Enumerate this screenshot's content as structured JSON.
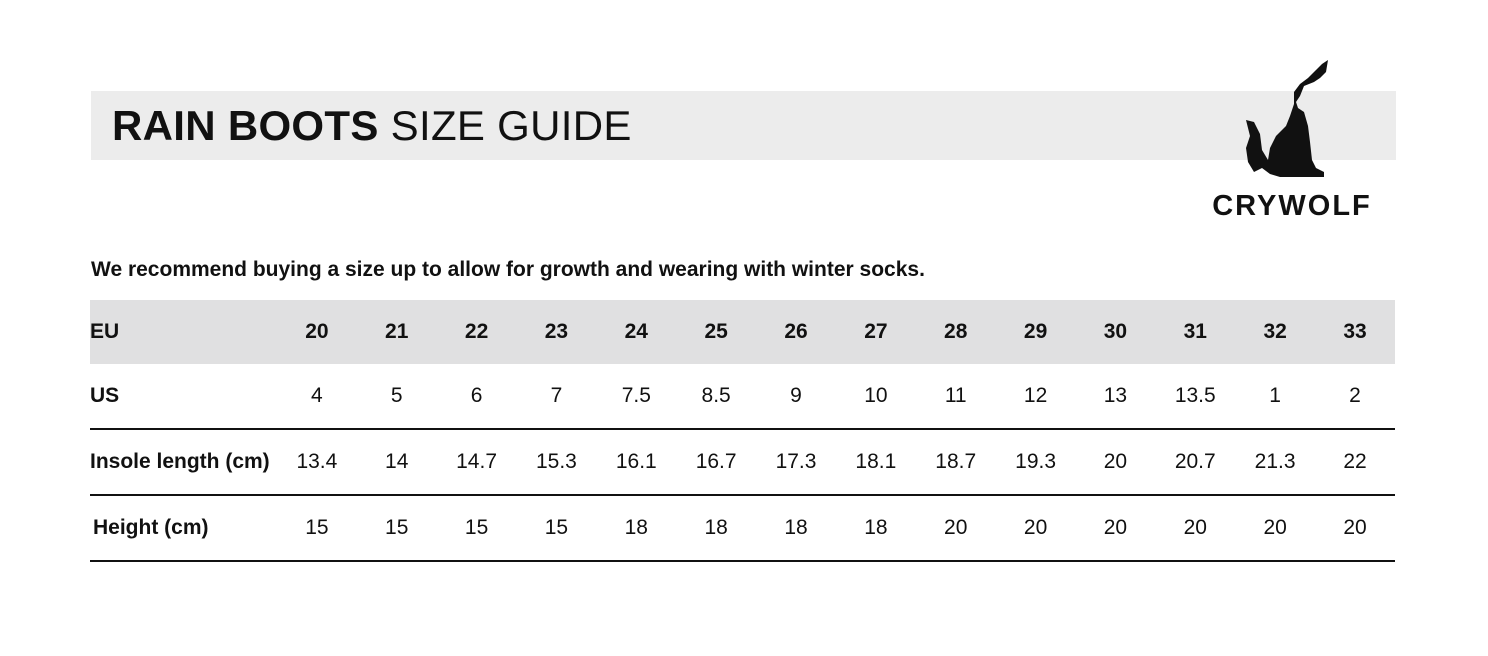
{
  "header": {
    "title_bold": "RAIN BOOTS",
    "title_light": "SIZE GUIDE"
  },
  "logo": {
    "brand": "CRYWOLF",
    "icon": "howling-wolf-icon"
  },
  "note": "We recommend buying a size up to allow for growth and wearing with winter socks.",
  "table": {
    "rows": [
      {
        "label": "EU",
        "values": [
          "20",
          "21",
          "22",
          "23",
          "24",
          "25",
          "26",
          "27",
          "28",
          "29",
          "30",
          "31",
          "32",
          "33"
        ]
      },
      {
        "label": "US",
        "values": [
          "4",
          "5",
          "6",
          "7",
          "7.5",
          "8.5",
          "9",
          "10",
          "11",
          "12",
          "13",
          "13.5",
          "1",
          "2"
        ]
      },
      {
        "label": "Insole length (cm)",
        "values": [
          "13.4",
          "14",
          "14.7",
          "15.3",
          "16.1",
          "16.7",
          "17.3",
          "18.1",
          "18.7",
          "19.3",
          "20",
          "20.7",
          "21.3",
          "22"
        ]
      },
      {
        "label": "Height (cm)",
        "values": [
          "15",
          "15",
          "15",
          "15",
          "18",
          "18",
          "18",
          "18",
          "20",
          "20",
          "20",
          "20",
          "20",
          "20"
        ]
      }
    ]
  }
}
